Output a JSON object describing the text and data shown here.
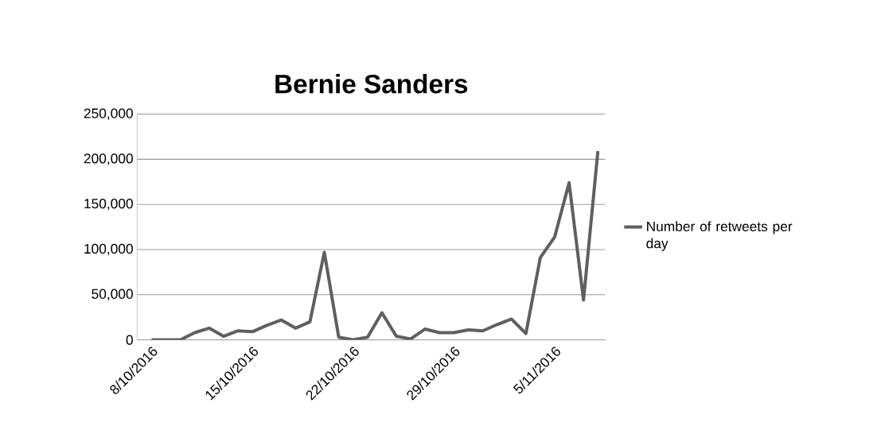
{
  "chart_data": {
    "type": "line",
    "title": "Bernie Sanders",
    "x": [
      "2016-10-08",
      "2016-10-09",
      "2016-10-10",
      "2016-10-11",
      "2016-10-12",
      "2016-10-13",
      "2016-10-14",
      "2016-10-15",
      "2016-10-16",
      "2016-10-17",
      "2016-10-18",
      "2016-10-19",
      "2016-10-20",
      "2016-10-21",
      "2016-10-22",
      "2016-10-23",
      "2016-10-24",
      "2016-10-25",
      "2016-10-26",
      "2016-10-27",
      "2016-10-28",
      "2016-10-29",
      "2016-10-30",
      "2016-10-31",
      "2016-11-01",
      "2016-11-02",
      "2016-11-03",
      "2016-11-04",
      "2016-11-05",
      "2016-11-06",
      "2016-11-07",
      "2016-11-08"
    ],
    "series": [
      {
        "name": "Number of retweets per day",
        "color": "#5f5f5f",
        "values": [
          0,
          0,
          0,
          8000,
          13000,
          4000,
          10000,
          9000,
          16000,
          22000,
          13000,
          20000,
          97000,
          3000,
          0,
          3000,
          30000,
          4000,
          1000,
          12000,
          8000,
          8000,
          11000,
          10000,
          17000,
          23000,
          7000,
          91000,
          114000,
          174000,
          44000,
          209000
        ]
      }
    ],
    "xlim": [
      "2016-10-07",
      "2016-11-08T12:00"
    ],
    "xticks": [
      {
        "value": "2016-10-08",
        "label": "8/10/2016"
      },
      {
        "value": "2016-10-15",
        "label": "15/10/2016"
      },
      {
        "value": "2016-10-22",
        "label": "22/10/2016"
      },
      {
        "value": "2016-10-29",
        "label": "29/10/2016"
      },
      {
        "value": "2016-11-05",
        "label": "5/11/2016"
      }
    ],
    "ylim": [
      0,
      250000
    ],
    "yticks": [
      {
        "value": 0,
        "label": "0"
      },
      {
        "value": 50000,
        "label": "50,000"
      },
      {
        "value": 100000,
        "label": "100,000"
      },
      {
        "value": 150000,
        "label": "150,000"
      },
      {
        "value": 200000,
        "label": "200,000"
      },
      {
        "value": 250000,
        "label": "250,000"
      }
    ],
    "grid": "y",
    "legend": "right",
    "marker": "none",
    "line_style": "solid"
  }
}
